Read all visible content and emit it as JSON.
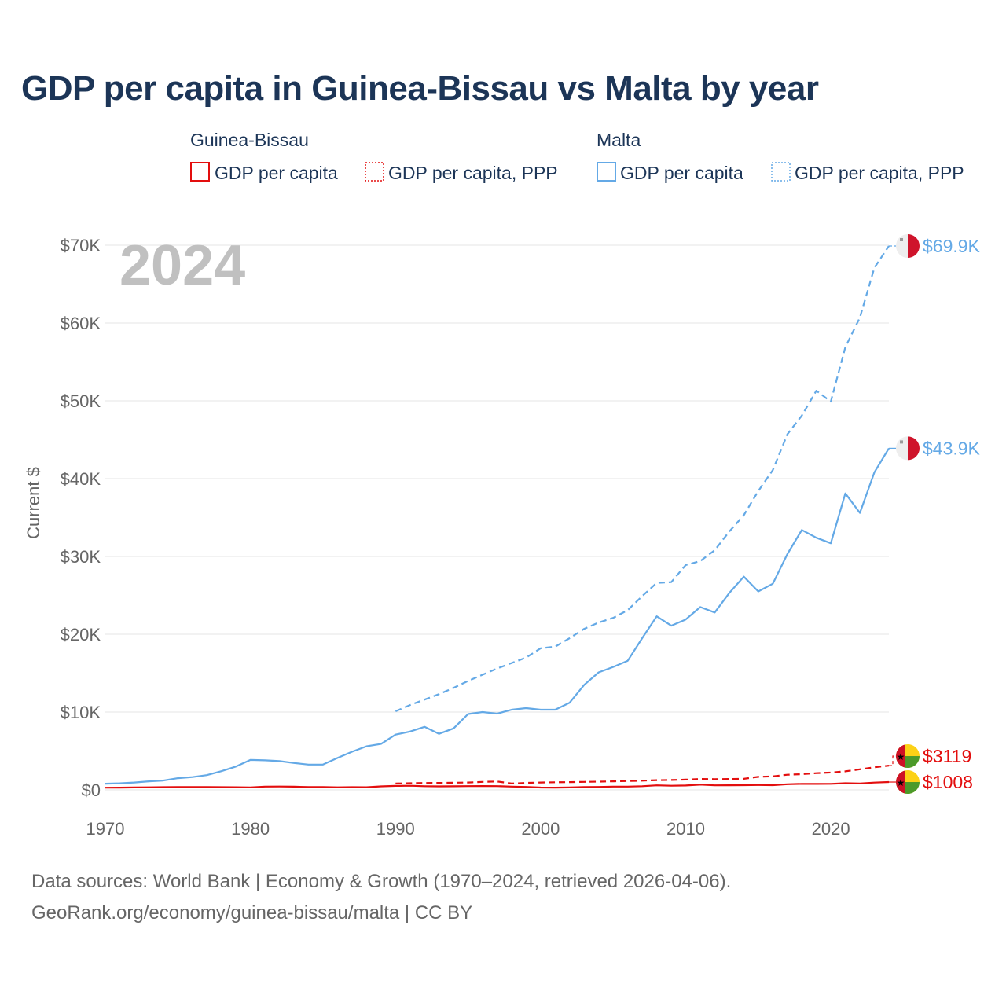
{
  "title": "GDP per capita in Guinea-Bissau vs Malta by year",
  "legend": {
    "groups": [
      {
        "country": "Guinea-Bissau",
        "color": "#e30e0e",
        "items": [
          "GDP per capita",
          "GDP per capita, PPP"
        ]
      },
      {
        "country": "Malta",
        "color": "#64a9e6",
        "items": [
          "GDP per capita",
          "GDP per capita, PPP"
        ]
      }
    ]
  },
  "year_label": "2024",
  "footer": {
    "line1": "Data sources: World Bank | Economy & Growth (1970–2024, retrieved 2026-04-06).",
    "line2": "GeoRank.org/economy/guinea-bissau/malta | CC BY"
  },
  "chart_data": {
    "type": "line",
    "title": "GDP per capita in Guinea-Bissau vs Malta by year",
    "xlabel": "",
    "ylabel": "Current $",
    "xlim": [
      1970,
      2024
    ],
    "ylim": [
      0,
      70000
    ],
    "x_ticks": [
      1970,
      1980,
      1990,
      2000,
      2010,
      2020
    ],
    "y_ticks": [
      0,
      10000,
      20000,
      30000,
      40000,
      50000,
      60000,
      70000
    ],
    "y_tick_labels": [
      "$0",
      "$10K",
      "$20K",
      "$30K",
      "$40K",
      "$50K",
      "$60K",
      "$70K"
    ],
    "grid": true,
    "series": [
      {
        "name": "Malta GDP per capita",
        "country": "Malta",
        "metric": "GDP per capita",
        "color": "#64a9e6",
        "dash": "solid",
        "end_label": "$43.9K",
        "flag": "malta",
        "x": [
          1970,
          1971,
          1972,
          1973,
          1974,
          1975,
          1976,
          1977,
          1978,
          1979,
          1980,
          1981,
          1982,
          1983,
          1984,
          1985,
          1986,
          1987,
          1988,
          1989,
          1990,
          1991,
          1992,
          1993,
          1994,
          1995,
          1996,
          1997,
          1998,
          1999,
          2000,
          2001,
          2002,
          2003,
          2004,
          2005,
          2006,
          2007,
          2008,
          2009,
          2010,
          2011,
          2012,
          2013,
          2014,
          2015,
          2016,
          2017,
          2018,
          2019,
          2020,
          2021,
          2022,
          2023,
          2024
        ],
        "values": [
          800,
          850,
          950,
          1100,
          1200,
          1500,
          1650,
          1900,
          2400,
          3000,
          3850,
          3800,
          3700,
          3450,
          3250,
          3250,
          4100,
          4900,
          5600,
          5900,
          7100,
          7500,
          8100,
          7200,
          7900,
          9750,
          10000,
          9800,
          10300,
          10500,
          10300,
          10300,
          11200,
          13500,
          15100,
          15800,
          16600,
          19500,
          22300,
          21100,
          21900,
          23500,
          22800,
          25300,
          27400,
          25500,
          26500,
          30300,
          33400,
          32400,
          31700,
          38100,
          35600,
          40800,
          43900
        ]
      },
      {
        "name": "Malta GDP per capita, PPP",
        "country": "Malta",
        "metric": "GDP per capita, PPP",
        "color": "#64a9e6",
        "dash": "dashed",
        "end_label": "$69.9K",
        "flag": "malta",
        "x": [
          1990,
          1991,
          1992,
          1993,
          1994,
          1995,
          1996,
          1997,
          1998,
          1999,
          2000,
          2001,
          2002,
          2003,
          2004,
          2005,
          2006,
          2007,
          2008,
          2009,
          2010,
          2011,
          2012,
          2013,
          2014,
          2015,
          2016,
          2017,
          2018,
          2019,
          2020,
          2021,
          2022,
          2023,
          2024
        ],
        "values": [
          10100,
          10900,
          11600,
          12300,
          13100,
          14000,
          14800,
          15600,
          16300,
          17000,
          18200,
          18400,
          19500,
          20700,
          21500,
          22100,
          23100,
          24900,
          26600,
          26700,
          28900,
          29400,
          30800,
          33200,
          35300,
          38400,
          41100,
          45700,
          48100,
          51300,
          49900,
          56900,
          60700,
          67100,
          69900
        ]
      },
      {
        "name": "Guinea-Bissau GDP per capita",
        "country": "Guinea-Bissau",
        "metric": "GDP per capita",
        "color": "#e30e0e",
        "dash": "solid",
        "end_label": "$1008",
        "flag": "guinea-bissau",
        "x": [
          1970,
          1971,
          1972,
          1973,
          1974,
          1975,
          1976,
          1977,
          1978,
          1979,
          1980,
          1981,
          1982,
          1983,
          1984,
          1985,
          1986,
          1987,
          1988,
          1989,
          1990,
          1991,
          1992,
          1993,
          1994,
          1995,
          1996,
          1997,
          1998,
          1999,
          2000,
          2001,
          2002,
          2003,
          2004,
          2005,
          2006,
          2007,
          2008,
          2009,
          2010,
          2011,
          2012,
          2013,
          2014,
          2015,
          2016,
          2017,
          2018,
          2019,
          2020,
          2021,
          2022,
          2023,
          2024
        ],
        "values": [
          280,
          290,
          310,
          330,
          350,
          370,
          370,
          360,
          350,
          340,
          320,
          420,
          430,
          410,
          360,
          370,
          330,
          350,
          340,
          450,
          520,
          540,
          470,
          450,
          460,
          480,
          490,
          480,
          420,
          380,
          300,
          290,
          310,
          360,
          380,
          420,
          420,
          470,
          590,
          540,
          570,
          680,
          590,
          600,
          610,
          630,
          610,
          730,
          780,
          770,
          780,
          860,
          830,
          940,
          1008
        ]
      },
      {
        "name": "Guinea-Bissau GDP per capita, PPP",
        "country": "Guinea-Bissau",
        "metric": "GDP per capita, PPP",
        "color": "#e30e0e",
        "dash": "dashed",
        "end_label": "$3119",
        "flag": "guinea-bissau",
        "x": [
          1990,
          1991,
          1992,
          1993,
          1994,
          1995,
          1996,
          1997,
          1998,
          1999,
          2000,
          2001,
          2002,
          2003,
          2004,
          2005,
          2006,
          2007,
          2008,
          2009,
          2010,
          2011,
          2012,
          2013,
          2014,
          2015,
          2016,
          2017,
          2018,
          2019,
          2020,
          2021,
          2022,
          2023,
          2024
        ],
        "values": [
          820,
          860,
          890,
          900,
          920,
          950,
          1030,
          1080,
          820,
          900,
          950,
          980,
          1000,
          1030,
          1060,
          1100,
          1130,
          1180,
          1250,
          1270,
          1320,
          1400,
          1380,
          1400,
          1420,
          1680,
          1740,
          1950,
          2020,
          2150,
          2230,
          2380,
          2650,
          2900,
          3119
        ]
      }
    ]
  }
}
